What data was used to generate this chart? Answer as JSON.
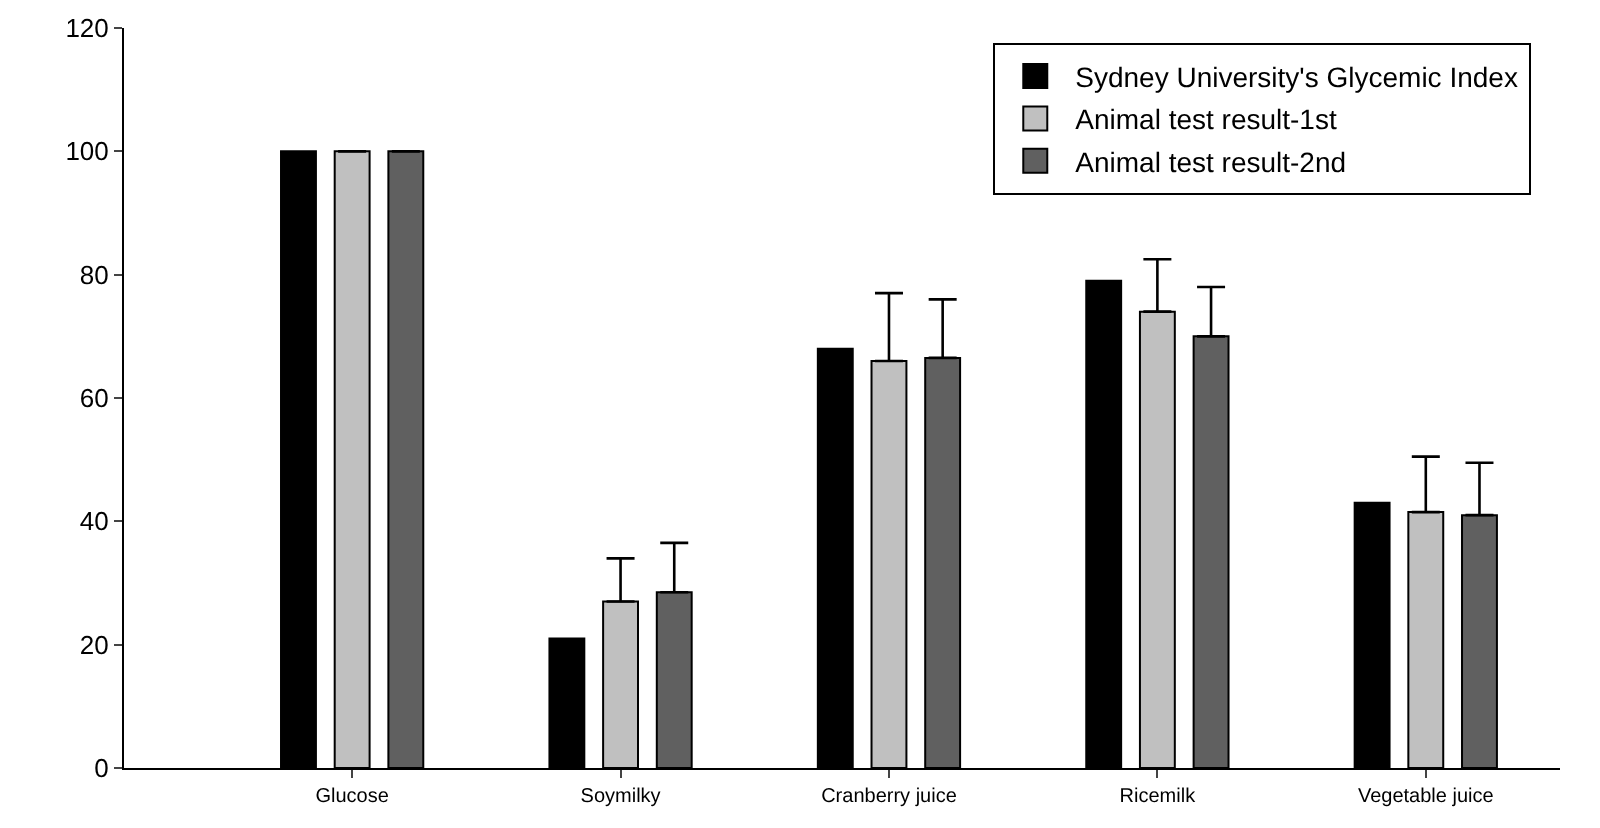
{
  "chart_data": {
    "type": "bar",
    "categories": [
      "Glucose",
      "Soymilky",
      "Cranberry juice",
      "Ricemilk",
      "Vegetable juice"
    ],
    "series": [
      {
        "name": "Sydney University's Glycemic Index",
        "color": "#000000",
        "values": [
          100,
          21,
          68,
          79,
          43
        ]
      },
      {
        "name": "Animal test result-1st",
        "color": "#c0c0c0",
        "values": [
          100,
          27,
          66,
          74,
          41.5
        ],
        "errors": [
          null,
          [
            27,
            34
          ],
          [
            66,
            77
          ],
          [
            74,
            82.5
          ],
          [
            41.5,
            50.5
          ]
        ]
      },
      {
        "name": "Animal test result-2nd",
        "color": "#606060",
        "values": [
          100,
          28.5,
          66.5,
          70,
          41
        ],
        "errors": [
          null,
          [
            28.5,
            36.5
          ],
          [
            66.5,
            76
          ],
          [
            70,
            78
          ],
          [
            41,
            49.5
          ]
        ]
      }
    ],
    "ylim": [
      0,
      120
    ],
    "yticks": [
      0,
      20,
      40,
      60,
      80,
      100,
      120
    ],
    "grid": false,
    "legend": "top right"
  }
}
